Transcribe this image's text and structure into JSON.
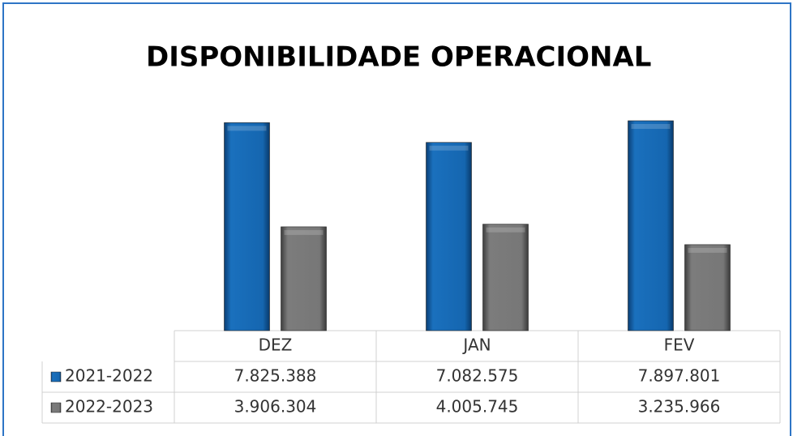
{
  "chart_data": {
    "type": "bar",
    "title": "DISPONIBILIDADE OPERACIONAL",
    "categories": [
      "DEZ",
      "JAN",
      "FEV"
    ],
    "series": [
      {
        "name": "2021-2022",
        "color": "#1060a8",
        "values": [
          7825388,
          7082575,
          7897801
        ],
        "value_labels": [
          "7.825.388",
          "7.082.575",
          "7.897.801"
        ]
      },
      {
        "name": "2022-2023",
        "color": "#6e6e6e",
        "values": [
          3906304,
          4005745,
          3235966
        ],
        "value_labels": [
          "3.906.304",
          "4.005.745",
          "3.235.966"
        ]
      }
    ]
  }
}
